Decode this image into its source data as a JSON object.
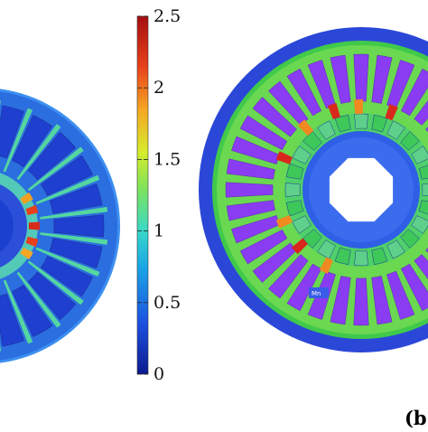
{
  "colorbar": {
    "tick_labels": [
      "2.5",
      "2",
      "1.5",
      "1",
      "0.5",
      "0"
    ],
    "colormap_stops": [
      "#0b1a8f",
      "#1d4fe0",
      "#1aa6e6",
      "#39d8c8",
      "#7fe35a",
      "#d6ec2c",
      "#f5a623",
      "#e8401a",
      "#a50f0f"
    ]
  },
  "panel_b": {
    "label": "(b",
    "pole_label": "Mn"
  },
  "colors": {
    "background_blue": "#2b47d8",
    "stator_green": "#40c94a",
    "slot_purple": "#8a3cf2",
    "rotor_bore_blue": "#3460ea",
    "hotspot_red": "#d8281c"
  }
}
